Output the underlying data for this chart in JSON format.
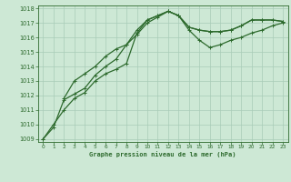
{
  "bg_color": "#cde8d5",
  "grid_color": "#a8ccb8",
  "line_color": "#2d6a2d",
  "title": "Graphe pression niveau de la mer (hPa)",
  "xlim": [
    -0.5,
    23.5
  ],
  "ylim": [
    1008.8,
    1018.2
  ],
  "xticks": [
    0,
    1,
    2,
    3,
    4,
    5,
    6,
    7,
    8,
    9,
    10,
    11,
    12,
    13,
    14,
    15,
    16,
    17,
    18,
    19,
    20,
    21,
    22,
    23
  ],
  "yticks": [
    1009,
    1010,
    1011,
    1012,
    1013,
    1014,
    1015,
    1016,
    1017,
    1018
  ],
  "series1": {
    "x": [
      0,
      1,
      2,
      3,
      4,
      5,
      6,
      7,
      8,
      9,
      10,
      11,
      12,
      13,
      14,
      15,
      16,
      17,
      18,
      19,
      20,
      21,
      22,
      23
    ],
    "y": [
      1009.0,
      1010.0,
      1011.0,
      1011.8,
      1012.2,
      1013.0,
      1013.5,
      1013.8,
      1014.2,
      1016.3,
      1017.2,
      1017.5,
      1017.8,
      1017.5,
      1016.7,
      1016.5,
      1016.4,
      1016.4,
      1016.5,
      1016.8,
      1017.2,
      1017.2,
      1017.2,
      1017.1
    ]
  },
  "series2": {
    "x": [
      0,
      1,
      2,
      3,
      4,
      5,
      6,
      7,
      8,
      9,
      10,
      11,
      12,
      13,
      14,
      15,
      16,
      17,
      18,
      19,
      20,
      21,
      22,
      23
    ],
    "y": [
      1009.0,
      1009.8,
      1011.7,
      1012.1,
      1012.5,
      1013.4,
      1014.0,
      1014.5,
      1015.5,
      1016.2,
      1017.0,
      1017.4,
      1017.8,
      1017.5,
      1016.5,
      1015.8,
      1015.3,
      1015.5,
      1015.8,
      1016.0,
      1016.3,
      1016.5,
      1016.8,
      1017.0
    ]
  },
  "series3": {
    "x": [
      2,
      3,
      4,
      5,
      6,
      7,
      8,
      9,
      10,
      11,
      12,
      13,
      14,
      15,
      16,
      17,
      18,
      19,
      20,
      21,
      22,
      23
    ],
    "y": [
      1011.8,
      1013.0,
      1013.5,
      1014.0,
      1014.7,
      1015.2,
      1015.5,
      1016.5,
      1017.2,
      1017.5,
      1017.8,
      1017.5,
      1016.7,
      1016.5,
      1016.4,
      1016.4,
      1016.5,
      1016.8,
      1017.2,
      1017.2,
      1017.2,
      1017.1
    ]
  }
}
